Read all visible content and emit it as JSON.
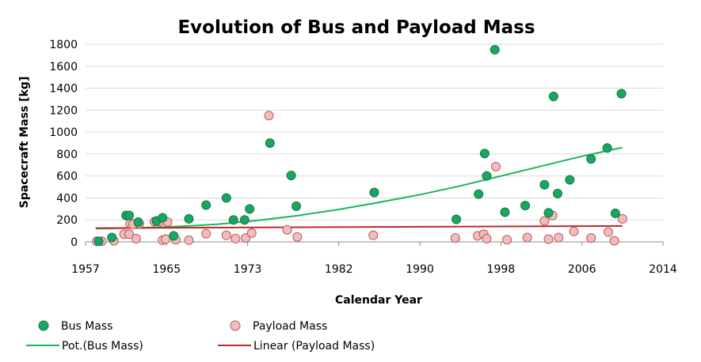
{
  "chart_data": {
    "type": "scatter",
    "title": "Evolution of Bus and Payload Mass",
    "xlabel": "Calendar Year",
    "ylabel": "Spacecraft Mass [kg]",
    "xlim": [
      1957,
      2014
    ],
    "ylim": [
      0,
      1800
    ],
    "xticks": [
      1957,
      1965,
      1973,
      1982,
      1990,
      1998,
      2006,
      2014
    ],
    "yticks": [
      0,
      200,
      400,
      600,
      800,
      1000,
      1200,
      1400,
      1600,
      1800
    ],
    "grid": "horizontal",
    "legend_position": "bottom",
    "series": [
      {
        "name": "Bus Mass",
        "kind": "scatter",
        "color": "#1aa660",
        "stroke": "#0f7a45",
        "points": [
          [
            1958.3,
            5
          ],
          [
            1959.6,
            40
          ],
          [
            1961.0,
            240
          ],
          [
            1961.3,
            240
          ],
          [
            1962.2,
            180
          ],
          [
            1964.0,
            190
          ],
          [
            1964.6,
            220
          ],
          [
            1965.7,
            55
          ],
          [
            1967.2,
            210
          ],
          [
            1968.9,
            335
          ],
          [
            1970.9,
            400
          ],
          [
            1971.6,
            200
          ],
          [
            1972.7,
            200
          ],
          [
            1973.2,
            300
          ],
          [
            1975.2,
            900
          ],
          [
            1977.3,
            605
          ],
          [
            1977.8,
            325
          ],
          [
            1985.5,
            450
          ],
          [
            1993.6,
            205
          ],
          [
            1995.8,
            435
          ],
          [
            1996.4,
            805
          ],
          [
            1996.6,
            600
          ],
          [
            1997.4,
            1750
          ],
          [
            1998.4,
            270
          ],
          [
            2000.4,
            330
          ],
          [
            2002.3,
            520
          ],
          [
            2002.7,
            265
          ],
          [
            2003.2,
            1325
          ],
          [
            2003.6,
            440
          ],
          [
            2004.8,
            565
          ],
          [
            2006.9,
            755
          ],
          [
            2008.5,
            855
          ],
          [
            2009.3,
            260
          ],
          [
            2009.9,
            1350
          ]
        ]
      },
      {
        "name": "Payload Mass",
        "kind": "scatter",
        "color": "#f2bcbc",
        "stroke": "#b85a5a",
        "points": [
          [
            1958.1,
            5
          ],
          [
            1958.6,
            5
          ],
          [
            1959.8,
            10
          ],
          [
            1960.8,
            70
          ],
          [
            1961.3,
            70
          ],
          [
            1961.4,
            165
          ],
          [
            1961.7,
            160
          ],
          [
            1962.0,
            30
          ],
          [
            1962.3,
            165
          ],
          [
            1963.8,
            185
          ],
          [
            1964.3,
            185
          ],
          [
            1964.6,
            15
          ],
          [
            1964.9,
            25
          ],
          [
            1965.1,
            180
          ],
          [
            1965.9,
            20
          ],
          [
            1967.2,
            15
          ],
          [
            1968.9,
            75
          ],
          [
            1970.9,
            60
          ],
          [
            1971.8,
            30
          ],
          [
            1972.8,
            35
          ],
          [
            1973.4,
            80
          ],
          [
            1975.1,
            1150
          ],
          [
            1976.9,
            110
          ],
          [
            1977.9,
            45
          ],
          [
            1985.4,
            60
          ],
          [
            1993.5,
            35
          ],
          [
            1995.7,
            55
          ],
          [
            1996.3,
            70
          ],
          [
            1996.6,
            30
          ],
          [
            1997.5,
            685
          ],
          [
            1998.6,
            20
          ],
          [
            2000.6,
            40
          ],
          [
            2002.3,
            190
          ],
          [
            2002.7,
            25
          ],
          [
            2003.1,
            240
          ],
          [
            2003.7,
            40
          ],
          [
            2005.2,
            95
          ],
          [
            2006.9,
            35
          ],
          [
            2008.6,
            90
          ],
          [
            2009.2,
            10
          ],
          [
            2010.0,
            210
          ]
        ]
      },
      {
        "name": "Pot.(Bus Mass)",
        "kind": "trendline",
        "color": "#1ab55c",
        "x": [
          1958,
          1962,
          1966,
          1970,
          1974,
          1978,
          1982,
          1986,
          1990,
          1994,
          1998,
          2002,
          2006,
          2010
        ],
        "values": [
          120,
          127,
          140,
          160,
          195,
          240,
          295,
          360,
          430,
          510,
          600,
          690,
          780,
          860
        ]
      },
      {
        "name": "Linear (Payload Mass)",
        "kind": "trendline",
        "color": "#c0262b",
        "x": [
          1958,
          2010
        ],
        "values": [
          125,
          145
        ]
      }
    ]
  }
}
